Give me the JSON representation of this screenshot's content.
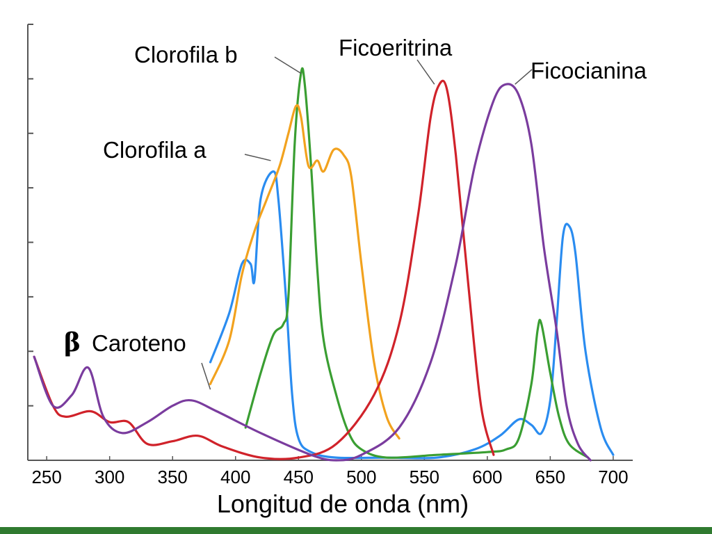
{
  "chart_data": {
    "type": "line",
    "title": "",
    "xlabel": "Longitud de onda (nm)",
    "ylabel": "",
    "xlim": [
      235,
      710
    ],
    "ylim": [
      0,
      8
    ],
    "x_ticks": [
      "250",
      "300",
      "350",
      "400",
      "450",
      "500",
      "550",
      "600",
      "650",
      "700"
    ],
    "y_ticks_labeled": false,
    "grid": false,
    "legend": "none (direct labels)",
    "series": [
      {
        "name": "Clorofila a",
        "color": "#2a8cf0",
        "points": [
          [
            380,
            1.8
          ],
          [
            395,
            2.7
          ],
          [
            405,
            3.6
          ],
          [
            412,
            3.6
          ],
          [
            415,
            3.3
          ],
          [
            420,
            4.8
          ],
          [
            430,
            5.3
          ],
          [
            434,
            4.8
          ],
          [
            440,
            3.0
          ],
          [
            445,
            1.2
          ],
          [
            450,
            0.4
          ],
          [
            460,
            0.15
          ],
          [
            480,
            0.05
          ],
          [
            520,
            0.05
          ],
          [
            560,
            0.05
          ],
          [
            590,
            0.2
          ],
          [
            610,
            0.45
          ],
          [
            625,
            0.75
          ],
          [
            635,
            0.65
          ],
          [
            643,
            0.5
          ],
          [
            650,
            1.1
          ],
          [
            655,
            2.5
          ],
          [
            660,
            4.1
          ],
          [
            665,
            4.3
          ],
          [
            670,
            3.8
          ],
          [
            678,
            2.0
          ],
          [
            690,
            0.6
          ],
          [
            700,
            0.1
          ]
        ]
      },
      {
        "name": "Clorofila b",
        "color": "#3a9e32",
        "points": [
          [
            408,
            0.6
          ],
          [
            420,
            1.6
          ],
          [
            430,
            2.3
          ],
          [
            438,
            2.5
          ],
          [
            442,
            3.0
          ],
          [
            447,
            5.8
          ],
          [
            452,
            7.1
          ],
          [
            455,
            6.9
          ],
          [
            460,
            5.4
          ],
          [
            465,
            3.5
          ],
          [
            470,
            2.2
          ],
          [
            480,
            1.2
          ],
          [
            490,
            0.5
          ],
          [
            500,
            0.2
          ],
          [
            520,
            0.05
          ],
          [
            560,
            0.1
          ],
          [
            600,
            0.15
          ],
          [
            615,
            0.2
          ],
          [
            625,
            0.4
          ],
          [
            635,
            1.4
          ],
          [
            640,
            2.4
          ],
          [
            643,
            2.5
          ],
          [
            650,
            1.6
          ],
          [
            657,
            0.8
          ],
          [
            665,
            0.3
          ],
          [
            680,
            0.05
          ]
        ]
      },
      {
        "name": "β Caroteno",
        "color": "#f2a21e",
        "points": [
          [
            380,
            1.4
          ],
          [
            395,
            2.2
          ],
          [
            405,
            3.4
          ],
          [
            415,
            4.2
          ],
          [
            425,
            4.8
          ],
          [
            435,
            5.4
          ],
          [
            442,
            6.0
          ],
          [
            448,
            6.5
          ],
          [
            452,
            6.3
          ],
          [
            458,
            5.4
          ],
          [
            465,
            5.5
          ],
          [
            470,
            5.3
          ],
          [
            478,
            5.7
          ],
          [
            486,
            5.6
          ],
          [
            492,
            5.2
          ],
          [
            500,
            3.6
          ],
          [
            510,
            1.8
          ],
          [
            520,
            0.8
          ],
          [
            530,
            0.4
          ]
        ]
      },
      {
        "name": "Ficoeritrina",
        "color": "#d0222a",
        "points": [
          [
            240,
            1.9
          ],
          [
            255,
            1.0
          ],
          [
            265,
            0.8
          ],
          [
            285,
            0.9
          ],
          [
            300,
            0.7
          ],
          [
            315,
            0.7
          ],
          [
            330,
            0.3
          ],
          [
            350,
            0.35
          ],
          [
            370,
            0.45
          ],
          [
            390,
            0.25
          ],
          [
            420,
            0.05
          ],
          [
            450,
            0.05
          ],
          [
            480,
            0.3
          ],
          [
            510,
            1.2
          ],
          [
            530,
            2.5
          ],
          [
            545,
            4.5
          ],
          [
            555,
            6.3
          ],
          [
            562,
            6.9
          ],
          [
            568,
            6.8
          ],
          [
            575,
            5.6
          ],
          [
            585,
            3.2
          ],
          [
            595,
            1.0
          ],
          [
            605,
            0.1
          ]
        ]
      },
      {
        "name": "Ficocianina",
        "color": "#7a3c9e",
        "points": [
          [
            240,
            1.9
          ],
          [
            255,
            1.0
          ],
          [
            270,
            1.2
          ],
          [
            283,
            1.7
          ],
          [
            295,
            0.8
          ],
          [
            310,
            0.5
          ],
          [
            330,
            0.7
          ],
          [
            350,
            1.0
          ],
          [
            365,
            1.1
          ],
          [
            385,
            0.9
          ],
          [
            420,
            0.5
          ],
          [
            460,
            0.1
          ],
          [
            480,
            0.0
          ],
          [
            500,
            0.1
          ],
          [
            530,
            0.6
          ],
          [
            555,
            1.8
          ],
          [
            575,
            3.6
          ],
          [
            590,
            5.4
          ],
          [
            605,
            6.6
          ],
          [
            615,
            6.9
          ],
          [
            625,
            6.7
          ],
          [
            635,
            5.8
          ],
          [
            645,
            3.9
          ],
          [
            655,
            2.4
          ],
          [
            663,
            1.0
          ],
          [
            672,
            0.3
          ],
          [
            682,
            0.0
          ]
        ]
      }
    ],
    "labels": {
      "clorofila_b": "Clorofila b",
      "clorofila_a": "Clorofila a",
      "ficoeritrina": "Ficoeritrina",
      "ficocianina": "Ficocianina",
      "beta_symbol": "β",
      "caroteno": "Caroteno"
    },
    "label_anchors": {
      "clorofila_b": [
        452,
        7.1
      ],
      "clorofila_a": [
        428,
        5.5
      ],
      "ficoeritrina": [
        558,
        6.9
      ],
      "ficocianina": [
        622,
        6.9
      ],
      "caroteno": [
        380,
        1.3
      ]
    }
  },
  "colors": {
    "axis": "#555555",
    "bottom_bar": "#2f7a2f",
    "leader": "#555555"
  }
}
